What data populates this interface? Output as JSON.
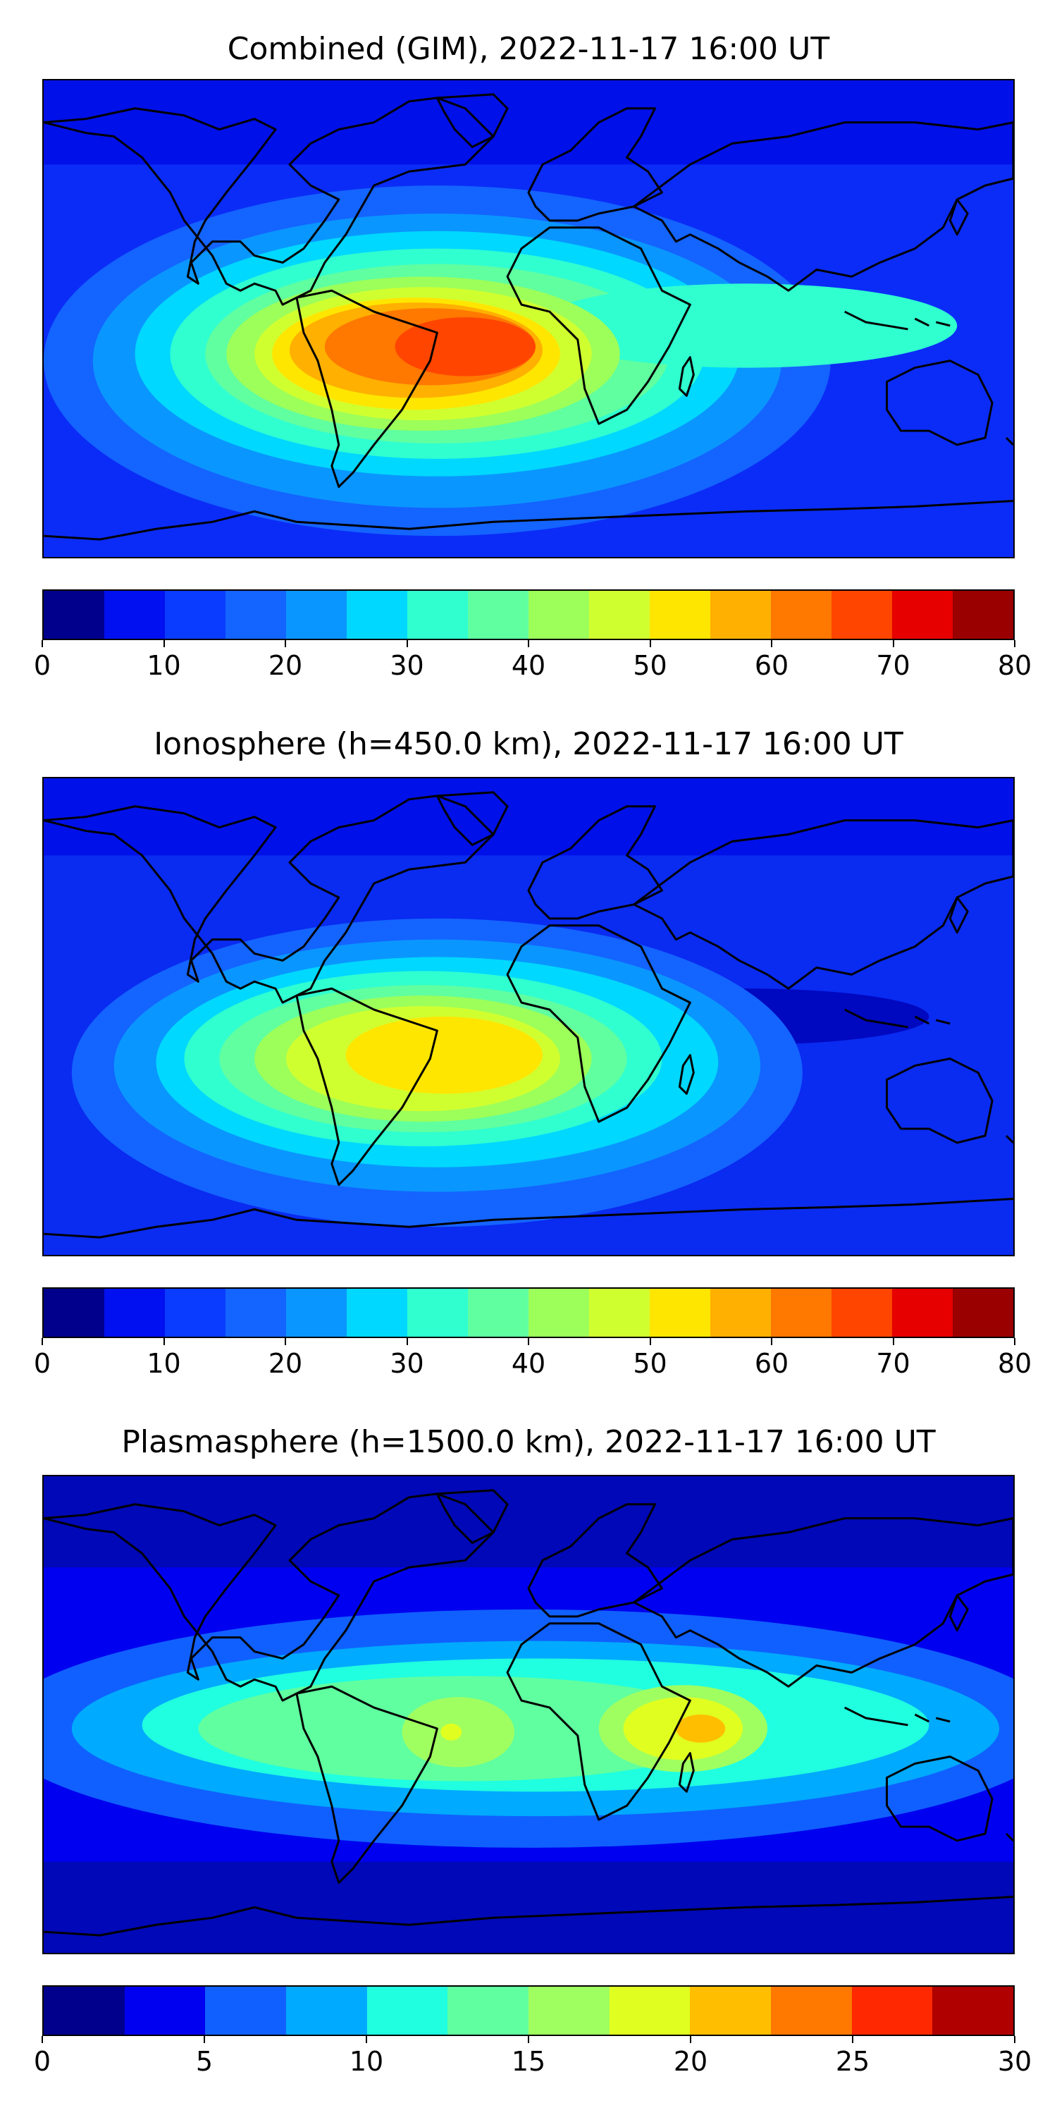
{
  "panels": [
    {
      "title": "Combined (GIM), 2022-11-17 16:00 UT",
      "background": "#0b2cf6",
      "colorbar": {
        "colors": [
          "#00008c",
          "#0010f0",
          "#0a3cff",
          "#1464ff",
          "#0a96ff",
          "#00d8ff",
          "#30ffd0",
          "#60ffa0",
          "#9cff5a",
          "#d0ff30",
          "#ffe600",
          "#ffb000",
          "#ff7800",
          "#ff4500",
          "#e60000",
          "#9a0000"
        ],
        "ticks": [
          "0",
          "10",
          "20",
          "30",
          "40",
          "50",
          "60",
          "70",
          "80"
        ]
      }
    },
    {
      "title": "Ionosphere  (h=450.0 km), 2022-11-17 16:00 UT",
      "background": "#0a2bf0",
      "colorbar": {
        "colors": [
          "#00008c",
          "#0010f0",
          "#0a3cff",
          "#1464ff",
          "#0a96ff",
          "#00d8ff",
          "#30ffd0",
          "#60ffa0",
          "#9cff5a",
          "#d0ff30",
          "#ffe600",
          "#ffb000",
          "#ff7800",
          "#ff4500",
          "#e60000",
          "#9a0000"
        ],
        "ticks": [
          "0",
          "10",
          "20",
          "30",
          "40",
          "50",
          "60",
          "70",
          "80"
        ]
      }
    },
    {
      "title": "Plasmasphere (h=1500.0 km), 2022-11-17 16:00 UT",
      "background": "#0008b8",
      "colorbar": {
        "colors": [
          "#00008c",
          "#0000f0",
          "#1060ff",
          "#00aaff",
          "#20ffe0",
          "#60ffa0",
          "#a0ff60",
          "#e0ff20",
          "#ffbe00",
          "#ff7800",
          "#ff2800",
          "#b00000"
        ],
        "ticks": [
          "0",
          "5",
          "10",
          "15",
          "20",
          "25",
          "30"
        ]
      }
    }
  ]
}
